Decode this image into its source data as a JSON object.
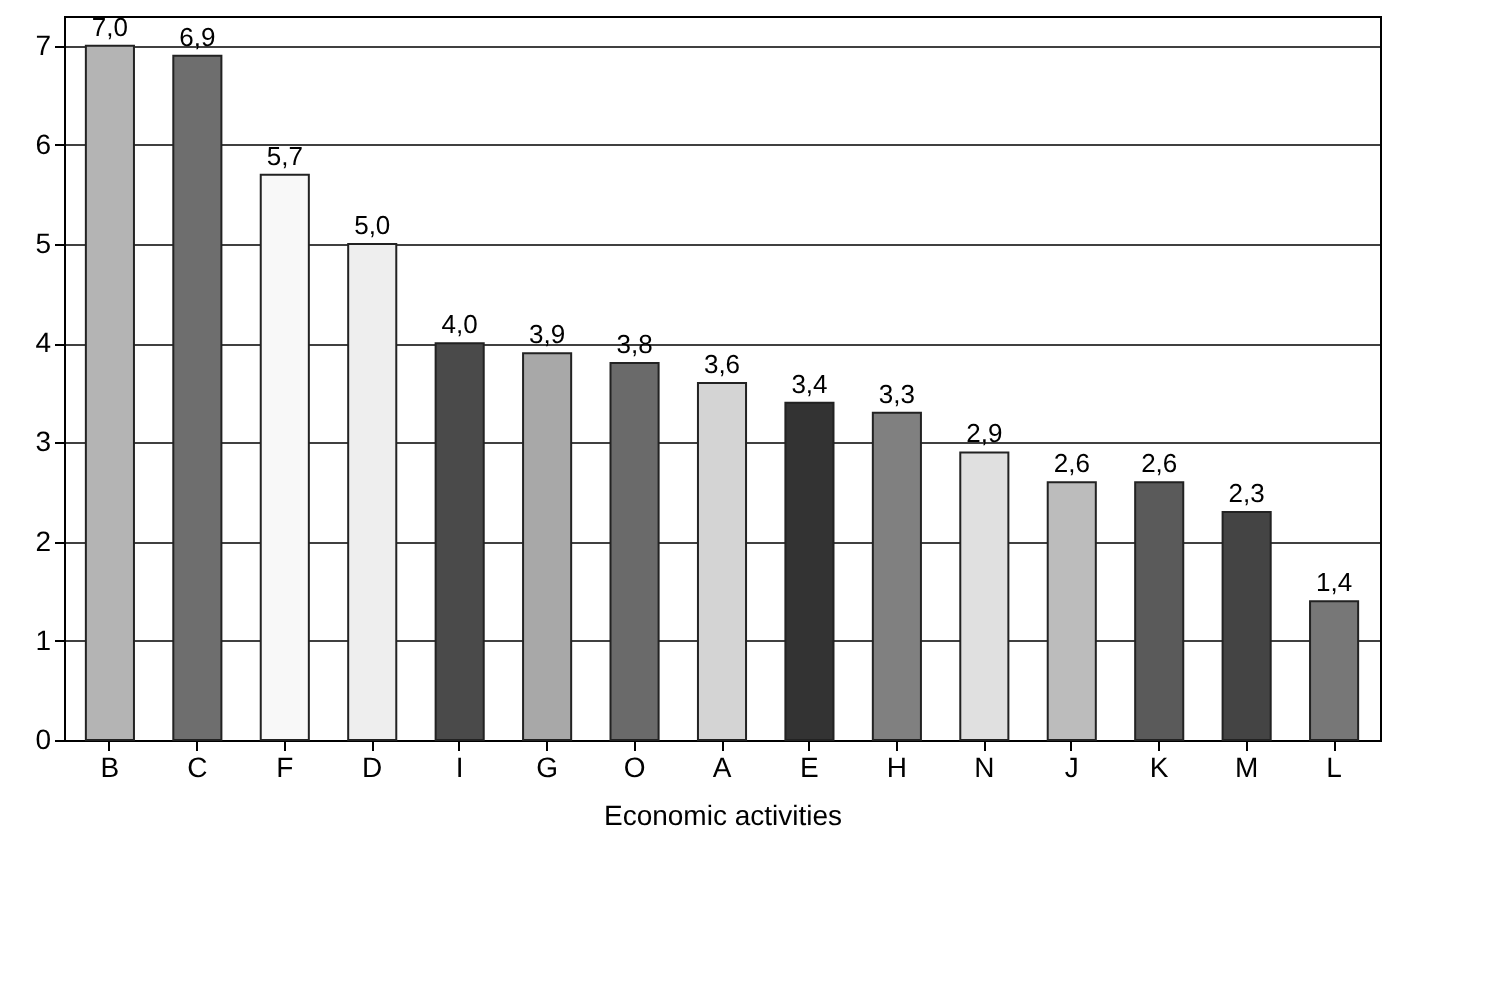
{
  "chart_data": {
    "type": "bar",
    "xlabel": "Economic activities",
    "categories": [
      "B",
      "C",
      "F",
      "D",
      "I",
      "G",
      "O",
      "A",
      "E",
      "H",
      "N",
      "J",
      "K",
      "M",
      "L"
    ],
    "values": [
      7.0,
      6.9,
      5.7,
      5.0,
      4.0,
      3.9,
      3.8,
      3.6,
      3.4,
      3.3,
      2.9,
      2.6,
      2.6,
      2.3,
      1.4
    ],
    "colors": [
      "#b4b4b4",
      "#6e6e6e",
      "#f8f8f8",
      "#eeeeee",
      "#4a4a4a",
      "#a8a8a8",
      "#6a6a6a",
      "#d4d4d4",
      "#333333",
      "#808080",
      "#e0e0e0",
      "#bcbcbc",
      "#5a5a5a",
      "#444444",
      "#777777"
    ],
    "value_labels": [
      "7,0",
      "6,9",
      "5,7",
      "5,0",
      "4,0",
      "3,9",
      "3,8",
      "3,6",
      "3,4",
      "3,3",
      "2,9",
      "2,6",
      "2,6",
      "2,3",
      "1,4"
    ],
    "ylim": [
      0,
      7.3
    ],
    "yticks": [
      0,
      1,
      2,
      3,
      4,
      5,
      6,
      7
    ],
    "grid": "y"
  }
}
